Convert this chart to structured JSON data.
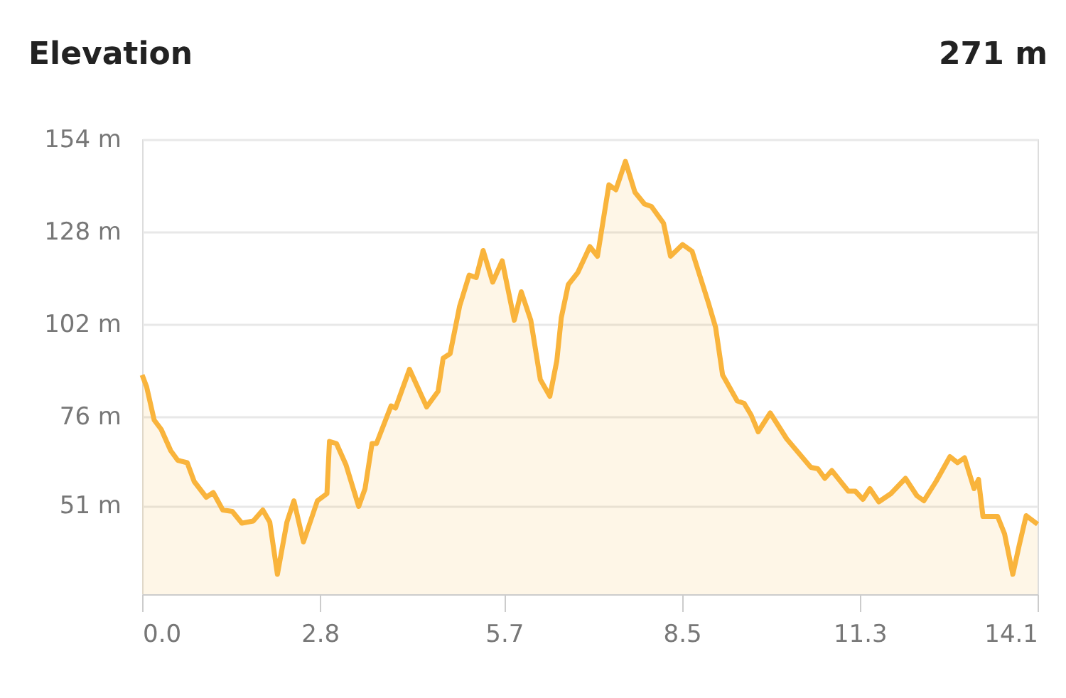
{
  "chart_data": {
    "type": "area",
    "title": "Elevation",
    "annotations": [
      "271 m"
    ],
    "x": [
      0,
      0.07,
      0.19,
      0.3,
      0.45,
      0.56,
      0.71,
      0.82,
      1.01,
      1.12,
      1.27,
      1.42,
      1.57,
      1.75,
      1.9,
      2.01,
      2.13,
      2.28,
      2.39,
      2.54,
      2.76,
      2.91,
      2.95,
      3.06,
      3.21,
      3.41,
      3.51,
      3.62,
      3.69,
      3.92,
      3.99,
      4.21,
      4.48,
      4.66,
      4.74,
      4.85,
      5.0,
      5.15,
      5.26,
      5.37,
      5.52,
      5.67,
      5.86,
      5.97,
      6.12,
      6.27,
      6.42,
      6.53,
      6.6,
      6.71,
      6.86,
      7.05,
      7.17,
      7.35,
      7.46,
      7.61,
      7.76,
      7.91,
      8.02,
      8.21,
      8.32,
      8.51,
      8.66,
      8.92,
      9.03,
      9.14,
      9.37,
      9.48,
      9.59,
      9.7,
      9.89,
      10.15,
      10.53,
      10.64,
      10.75,
      10.86,
      11.12,
      11.23,
      11.35,
      11.46,
      11.6,
      11.79,
      12.02,
      12.2,
      12.31,
      12.5,
      12.72,
      12.84,
      12.95,
      13.1,
      13.17,
      13.24,
      13.47,
      13.58,
      13.71,
      13.81,
      13.92,
      14.1
    ],
    "series": [
      {
        "color": "#f9b43c",
        "values": [
          87.7,
          84.4,
          75.0,
          72.4,
          66.4,
          63.7,
          63.0,
          57.7,
          53.3,
          54.6,
          49.7,
          49.3,
          46.0,
          46.6,
          49.7,
          46.3,
          31.6,
          46.3,
          52.3,
          40.7,
          52.3,
          54.3,
          69.0,
          68.4,
          62.4,
          50.7,
          55.7,
          68.4,
          68.4,
          79.0,
          78.4,
          89.3,
          78.7,
          83.1,
          92.4,
          93.7,
          107.1,
          115.8,
          115.1,
          122.7,
          113.8,
          119.8,
          103.1,
          111.1,
          103.1,
          86.4,
          81.7,
          91.7,
          103.8,
          113.1,
          116.5,
          123.8,
          121.1,
          141.2,
          139.8,
          147.8,
          139.1,
          135.8,
          135.1,
          130.4,
          121.1,
          124.4,
          122.5,
          107.8,
          101.1,
          87.7,
          80.4,
          79.7,
          76.4,
          71.7,
          77.0,
          69.7,
          61.7,
          61.3,
          58.6,
          60.8,
          55.0,
          55.0,
          52.7,
          55.7,
          52.0,
          54.3,
          58.6,
          53.7,
          52.3,
          57.7,
          64.7,
          63.0,
          64.4,
          55.7,
          58.3,
          47.9,
          47.9,
          43.0,
          31.6,
          39.7,
          48.1,
          45.7
        ]
      }
    ],
    "xlim": [
      0,
      14.1
    ],
    "xticks": [
      {
        "value": 0,
        "label": "0.0"
      },
      2.8,
      5.7,
      8.5,
      11.3,
      14.1
    ],
    "ylim": [
      26,
      154
    ],
    "yticks": [
      {
        "value": 51,
        "label": "51 m"
      },
      {
        "value": 76,
        "label": "76 m"
      },
      {
        "value": 102,
        "label": "102 m"
      },
      {
        "value": 128,
        "label": "128 m"
      },
      {
        "value": 154,
        "label": "154 m"
      }
    ],
    "grid": "y"
  }
}
